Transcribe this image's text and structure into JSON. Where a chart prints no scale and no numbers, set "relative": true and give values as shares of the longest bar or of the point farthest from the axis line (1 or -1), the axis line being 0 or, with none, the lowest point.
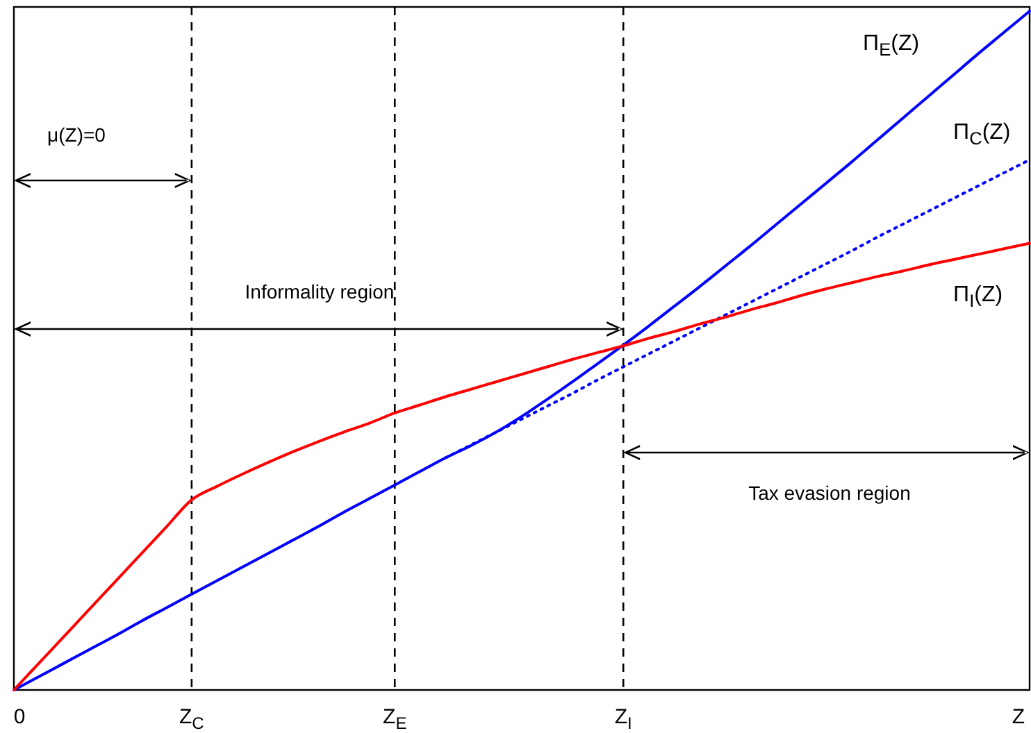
{
  "chart_data": {
    "type": "line",
    "relative": true,
    "categories": [
      "0",
      null,
      null,
      null,
      null,
      null,
      null,
      "Z$_{C}$",
      null,
      null,
      null,
      null,
      null,
      null,
      null,
      "Z$_{E}$",
      null,
      null,
      null,
      null,
      null,
      null,
      null,
      null,
      "Z$_{I}$",
      null,
      null,
      null,
      null,
      null,
      null,
      null,
      null,
      null,
      null,
      null,
      null,
      null,
      null,
      null,
      "Z"
    ],
    "series": [
      {
        "name": "Π$_{E}$(Z)",
        "color": "#0000ff",
        "line_style": "solid",
        "values": [
          0,
          0.02,
          0.04,
          0.06,
          0.08,
          0.101,
          0.121,
          0.141,
          0.161,
          0.181,
          0.201,
          0.221,
          0.241,
          0.262,
          0.282,
          0.302,
          0.322,
          0.342,
          0.36,
          0.38,
          0.403,
          0.428,
          0.454,
          0.481,
          0.508,
          0.536,
          0.565,
          0.594,
          0.624,
          0.654,
          0.685,
          0.716,
          0.747,
          0.778,
          0.81,
          0.842,
          0.874,
          0.906,
          0.938,
          0.969,
          1
        ]
      },
      {
        "name": "Π$_{C}$(Z)",
        "color": "#0000ff",
        "line_style": "dotted",
        "values": [
          null,
          null,
          null,
          null,
          null,
          null,
          null,
          null,
          null,
          null,
          null,
          null,
          null,
          null,
          null,
          null,
          null,
          0.342,
          0.361,
          0.38,
          0.399,
          0.418,
          0.437,
          0.457,
          0.476,
          0.495,
          0.514,
          0.533,
          0.552,
          0.571,
          0.59,
          0.609,
          0.628,
          0.647,
          0.667,
          0.686,
          0.705,
          0.724,
          0.743,
          0.762,
          0.781
        ]
      },
      {
        "name": "Π$_{I}$(Z)",
        "color": "#ff0000",
        "line_style": "solid",
        "values": [
          0,
          0.04,
          0.08,
          0.12,
          0.16,
          0.2,
          0.24,
          0.28,
          0.3,
          0.318,
          0.335,
          0.351,
          0.366,
          0.38,
          0.393,
          0.408,
          0.42,
          0.432,
          0.443,
          0.454,
          0.465,
          0.476,
          0.487,
          0.497,
          0.507,
          0.518,
          0.528,
          0.539,
          0.549,
          0.56,
          0.57,
          0.581,
          0.591,
          0.6,
          0.609,
          0.617,
          0.626,
          0.634,
          0.642,
          0.65,
          0.658
        ]
      }
    ],
    "ref_lines": [
      {
        "axis": "x",
        "value": "Z$_{C}$",
        "line_style": "dashed"
      },
      {
        "axis": "x",
        "value": "Z$_{E}$",
        "line_style": "dashed"
      },
      {
        "axis": "x",
        "value": "Z$_{I}$",
        "line_style": "dashed"
      }
    ],
    "annotations": [
      "μ(Z)=0",
      "Informality region",
      "Tax evasion region"
    ],
    "grid": false
  }
}
